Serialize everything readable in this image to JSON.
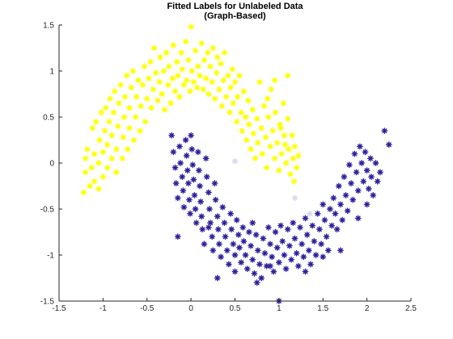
{
  "chart_data": {
    "type": "scatter",
    "title": [
      "Fitted Labels for Unlabeled Data",
      "(Graph-Based)"
    ],
    "xlabel": "",
    "ylabel": "",
    "xlim": [
      -1.5,
      2.5
    ],
    "ylim": [
      -1.5,
      1.5
    ],
    "xticks": [
      "-1.5",
      "-1",
      "-0.5",
      "0",
      "0.5",
      "1",
      "1.5",
      "2",
      "2.5"
    ],
    "yticks": [
      "-1.5",
      "-1",
      "-0.5",
      "0",
      "0.5",
      "1",
      "1.5"
    ],
    "grid": false,
    "legend": "none",
    "marker": "asterisk",
    "colors": {
      "label_1": "#ffff00",
      "label_2": "#2e1f9c",
      "intermediate": "#d9d9f0"
    },
    "series": [
      {
        "color": "#ffff00",
        "points": [
          [
            -1.22,
            -0.32
          ],
          [
            -1.2,
            -0.1
          ],
          [
            -1.2,
            0.05
          ],
          [
            -1.18,
            0.15
          ],
          [
            -1.15,
            -0.25
          ],
          [
            -1.13,
            -0.05
          ],
          [
            -1.12,
            0.38
          ],
          [
            -1.1,
            0.1
          ],
          [
            -1.1,
            -0.2
          ],
          [
            -1.08,
            0.45
          ],
          [
            -1.05,
            -0.28
          ],
          [
            -1.05,
            0.0
          ],
          [
            -1.04,
            0.25
          ],
          [
            -1.02,
            0.55
          ],
          [
            -1.0,
            -0.15
          ],
          [
            -1.0,
            0.12
          ],
          [
            -0.98,
            0.35
          ],
          [
            -0.97,
            0.6
          ],
          [
            -0.95,
            -0.05
          ],
          [
            -0.95,
            0.2
          ],
          [
            -0.93,
            0.45
          ],
          [
            -0.92,
            0.7
          ],
          [
            -0.9,
            0.05
          ],
          [
            -0.9,
            0.3
          ],
          [
            -0.88,
            0.55
          ],
          [
            -0.87,
            0.78
          ],
          [
            -0.85,
            -0.1
          ],
          [
            -0.85,
            0.15
          ],
          [
            -0.83,
            0.4
          ],
          [
            -0.82,
            0.65
          ],
          [
            -0.8,
            0.85
          ],
          [
            -0.78,
            0.05
          ],
          [
            -0.77,
            0.28
          ],
          [
            -0.76,
            0.5
          ],
          [
            -0.75,
            0.72
          ],
          [
            -0.73,
            0.95
          ],
          [
            -0.72,
            0.15
          ],
          [
            -0.7,
            0.38
          ],
          [
            -0.7,
            0.6
          ],
          [
            -0.68,
            0.82
          ],
          [
            -0.66,
            1.0
          ],
          [
            -0.65,
            0.25
          ],
          [
            -0.63,
            0.5
          ],
          [
            -0.62,
            0.72
          ],
          [
            -0.6,
            0.9
          ],
          [
            -0.58,
            0.35
          ],
          [
            -0.57,
            0.62
          ],
          [
            -0.55,
            0.85
          ],
          [
            -0.53,
            1.05
          ],
          [
            -0.52,
            0.45
          ],
          [
            -0.5,
            0.7
          ],
          [
            -0.48,
            0.92
          ],
          [
            -0.46,
            1.1
          ],
          [
            -0.45,
            0.6
          ],
          [
            -0.43,
            0.8
          ],
          [
            -0.42,
            1.25
          ],
          [
            -0.4,
            0.98
          ],
          [
            -0.38,
            0.68
          ],
          [
            -0.36,
            0.88
          ],
          [
            -0.35,
            1.15
          ],
          [
            -0.33,
            0.75
          ],
          [
            -0.31,
            1.0
          ],
          [
            -0.3,
            0.58
          ],
          [
            -0.28,
            1.2
          ],
          [
            -0.26,
            0.85
          ],
          [
            -0.25,
            1.05
          ],
          [
            -0.23,
            0.65
          ],
          [
            -0.21,
            0.92
          ],
          [
            -0.2,
            1.28
          ],
          [
            -0.18,
            0.78
          ],
          [
            -0.16,
            1.1
          ],
          [
            -0.15,
            0.95
          ],
          [
            -0.13,
            0.72
          ],
          [
            -0.11,
            1.2
          ],
          [
            -0.1,
            1.02
          ],
          [
            -0.08,
            0.85
          ],
          [
            -0.06,
            1.32
          ],
          [
            -0.05,
            0.9
          ],
          [
            -0.03,
            1.12
          ],
          [
            -0.01,
            0.78
          ],
          [
            0.0,
            1.48
          ],
          [
            0.01,
            1.0
          ],
          [
            0.03,
            0.88
          ],
          [
            0.05,
            1.22
          ],
          [
            0.07,
            0.82
          ],
          [
            0.08,
            1.05
          ],
          [
            0.1,
            0.95
          ],
          [
            0.12,
            1.3
          ],
          [
            0.14,
            0.8
          ],
          [
            0.15,
            1.12
          ],
          [
            0.17,
            0.92
          ],
          [
            0.19,
            1.2
          ],
          [
            0.2,
            0.75
          ],
          [
            0.22,
            1.05
          ],
          [
            0.24,
            0.88
          ],
          [
            0.25,
            1.25
          ],
          [
            0.27,
            0.7
          ],
          [
            0.29,
            0.98
          ],
          [
            0.3,
            1.15
          ],
          [
            0.32,
            0.8
          ],
          [
            0.34,
            1.08
          ],
          [
            0.35,
            0.62
          ],
          [
            0.37,
            0.9
          ],
          [
            0.38,
            1.2
          ],
          [
            0.4,
            0.72
          ],
          [
            0.42,
            0.95
          ],
          [
            0.44,
            0.55
          ],
          [
            0.45,
            0.82
          ],
          [
            0.47,
            1.02
          ],
          [
            0.48,
            0.65
          ],
          [
            0.5,
            0.88
          ],
          [
            0.52,
            0.45
          ],
          [
            0.53,
            0.72
          ],
          [
            0.55,
            0.95
          ],
          [
            0.57,
            0.55
          ],
          [
            0.58,
            0.35
          ],
          [
            0.6,
            0.78
          ],
          [
            0.62,
            0.5
          ],
          [
            0.63,
            0.25
          ],
          [
            0.65,
            0.68
          ],
          [
            0.66,
            0.42
          ],
          [
            0.68,
            0.15
          ],
          [
            0.7,
            0.58
          ],
          [
            0.71,
            0.32
          ],
          [
            0.73,
            0.05
          ],
          [
            0.75,
            0.48
          ],
          [
            0.76,
            0.22
          ],
          [
            0.78,
            0.88
          ],
          [
            0.8,
            0.38
          ],
          [
            0.81,
            0.1
          ],
          [
            0.83,
            0.62
          ],
          [
            0.85,
            0.28
          ],
          [
            0.86,
            -0.05
          ],
          [
            0.88,
            0.5
          ],
          [
            0.9,
            0.18
          ],
          [
            0.91,
            0.8
          ],
          [
            0.93,
            0.35
          ],
          [
            0.95,
            0.05
          ],
          [
            0.96,
            0.55
          ],
          [
            0.98,
            0.22
          ],
          [
            1.0,
            -0.08
          ],
          [
            1.01,
            0.42
          ],
          [
            1.03,
            0.1
          ],
          [
            1.05,
            0.65
          ],
          [
            1.06,
            0.3
          ],
          [
            1.08,
            0.0
          ],
          [
            1.1,
            0.48
          ],
          [
            1.11,
            0.15
          ],
          [
            1.13,
            -0.12
          ],
          [
            1.15,
            0.3
          ],
          [
            1.16,
            0.05
          ],
          [
            1.18,
            0.18
          ],
          [
            1.2,
            -0.05
          ],
          [
            1.22,
            0.08
          ],
          [
            1.1,
            0.95
          ],
          [
            0.95,
            0.9
          ],
          [
            1.02,
            0.38
          ],
          [
            0.87,
            0.7
          ],
          [
            1.07,
            0.2
          ],
          [
            1.17,
            -0.2
          ]
        ]
      },
      {
        "color": "#2e1f9c",
        "points": [
          [
            -0.22,
            0.3
          ],
          [
            -0.2,
            0.12
          ],
          [
            -0.18,
            -0.05
          ],
          [
            -0.17,
            -0.22
          ],
          [
            -0.15,
            -0.38
          ],
          [
            -0.13,
            0.18
          ],
          [
            -0.12,
            0.0
          ],
          [
            -0.1,
            -0.15
          ],
          [
            -0.09,
            -0.3
          ],
          [
            -0.08,
            -0.48
          ],
          [
            -0.06,
            0.25
          ],
          [
            -0.05,
            0.08
          ],
          [
            -0.04,
            -0.08
          ],
          [
            -0.03,
            -0.22
          ],
          [
            -0.02,
            -0.4
          ],
          [
            -0.01,
            -0.55
          ],
          [
            -0.15,
            -0.8
          ],
          [
            0.0,
            0.3
          ],
          [
            0.01,
            0.15
          ],
          [
            0.02,
            -0.02
          ],
          [
            0.03,
            -0.18
          ],
          [
            0.04,
            -0.35
          ],
          [
            0.05,
            -0.5
          ],
          [
            0.06,
            -0.65
          ],
          [
            0.08,
            0.12
          ],
          [
            0.09,
            -0.08
          ],
          [
            0.1,
            -0.25
          ],
          [
            0.11,
            -0.42
          ],
          [
            0.12,
            -0.58
          ],
          [
            0.13,
            -0.72
          ],
          [
            0.15,
            -0.88
          ],
          [
            0.17,
            0.05
          ],
          [
            0.18,
            -0.15
          ],
          [
            0.2,
            -0.32
          ],
          [
            0.21,
            -0.5
          ],
          [
            0.22,
            -0.65
          ],
          [
            0.24,
            -0.8
          ],
          [
            0.25,
            -0.95
          ],
          [
            0.27,
            -0.22
          ],
          [
            0.28,
            -0.4
          ],
          [
            0.3,
            -0.58
          ],
          [
            0.31,
            -0.72
          ],
          [
            0.32,
            -0.88
          ],
          [
            0.34,
            -1.02
          ],
          [
            0.3,
            -1.25
          ],
          [
            0.36,
            -0.48
          ],
          [
            0.38,
            -0.65
          ],
          [
            0.39,
            -0.8
          ],
          [
            0.41,
            -0.95
          ],
          [
            0.43,
            -1.1
          ],
          [
            0.45,
            -0.55
          ],
          [
            0.46,
            -0.72
          ],
          [
            0.48,
            -0.88
          ],
          [
            0.5,
            -1.0
          ],
          [
            0.52,
            -0.62
          ],
          [
            0.54,
            -0.78
          ],
          [
            0.55,
            -0.92
          ],
          [
            0.57,
            -1.08
          ],
          [
            0.59,
            -0.7
          ],
          [
            0.6,
            -0.85
          ],
          [
            0.62,
            -1.0
          ],
          [
            0.64,
            -1.15
          ],
          [
            0.66,
            -0.75
          ],
          [
            0.68,
            -0.9
          ],
          [
            0.7,
            -1.05
          ],
          [
            0.72,
            -1.2
          ],
          [
            0.74,
            -0.78
          ],
          [
            0.76,
            -0.95
          ],
          [
            0.78,
            -1.1
          ],
          [
            0.8,
            -1.25
          ],
          [
            0.82,
            -0.82
          ],
          [
            0.84,
            -0.98
          ],
          [
            0.86,
            -1.12
          ],
          [
            0.88,
            -0.7
          ],
          [
            0.9,
            -0.88
          ],
          [
            0.92,
            -1.02
          ],
          [
            0.94,
            -1.18
          ],
          [
            0.96,
            -0.75
          ],
          [
            0.98,
            -0.92
          ],
          [
            1.0,
            -1.08
          ],
          [
            1.02,
            -0.68
          ],
          [
            1.04,
            -0.85
          ],
          [
            1.06,
            -1.0
          ],
          [
            1.08,
            -1.15
          ],
          [
            1.1,
            -0.72
          ],
          [
            1.12,
            -0.9
          ],
          [
            1.14,
            -1.05
          ],
          [
            1.16,
            -0.65
          ],
          [
            1.18,
            -0.82
          ],
          [
            1.2,
            -0.98
          ],
          [
            1.22,
            -1.12
          ],
          [
            1.24,
            -0.7
          ],
          [
            1.26,
            -0.88
          ],
          [
            1.28,
            -1.02
          ],
          [
            1.3,
            -0.6
          ],
          [
            1.32,
            -0.78
          ],
          [
            1.34,
            -0.95
          ],
          [
            1.36,
            -1.1
          ],
          [
            1.38,
            -0.68
          ],
          [
            1.4,
            -0.85
          ],
          [
            1.42,
            -1.0
          ],
          [
            1.44,
            -0.55
          ],
          [
            1.46,
            -0.72
          ],
          [
            1.48,
            -0.88
          ],
          [
            1.5,
            -0.45
          ],
          [
            1.52,
            -0.62
          ],
          [
            1.54,
            -0.8
          ],
          [
            1.56,
            -0.95
          ],
          [
            1.58,
            -0.5
          ],
          [
            1.6,
            -0.68
          ],
          [
            1.62,
            -0.38
          ],
          [
            1.64,
            -0.55
          ],
          [
            1.66,
            -0.72
          ],
          [
            1.68,
            -0.25
          ],
          [
            1.7,
            -0.45
          ],
          [
            1.72,
            -0.62
          ],
          [
            1.74,
            -0.15
          ],
          [
            1.76,
            -0.35
          ],
          [
            1.78,
            -0.52
          ],
          [
            1.8,
            -0.02
          ],
          [
            1.82,
            -0.22
          ],
          [
            1.84,
            -0.4
          ],
          [
            1.86,
            0.1
          ],
          [
            1.88,
            -0.1
          ],
          [
            1.9,
            -0.3
          ],
          [
            1.92,
            0.18
          ],
          [
            1.94,
            0.0
          ],
          [
            1.96,
            -0.2
          ],
          [
            1.98,
            0.12
          ],
          [
            2.0,
            -0.08
          ],
          [
            2.02,
            -0.28
          ],
          [
            2.04,
            0.05
          ],
          [
            2.05,
            -0.15
          ],
          [
            2.07,
            -0.35
          ],
          [
            2.1,
            0.0
          ],
          [
            2.12,
            -0.2
          ],
          [
            2.15,
            -0.1
          ],
          [
            2.2,
            0.35
          ],
          [
            2.25,
            0.2
          ],
          [
            2.0,
            -0.45
          ],
          [
            1.7,
            -0.95
          ],
          [
            1.5,
            -1.02
          ],
          [
            1.9,
            -0.6
          ],
          [
            1.0,
            -1.5
          ],
          [
            0.7,
            -0.65
          ],
          [
            0.75,
            -1.3
          ],
          [
            0.5,
            -1.18
          ],
          [
            0.2,
            -0.7
          ],
          [
            0.9,
            -1.12
          ],
          [
            1.3,
            -1.18
          ]
        ]
      },
      {
        "color": "#d9d9f0",
        "points": [
          [
            0.5,
            0.02
          ],
          [
            1.18,
            -0.38
          ],
          [
            1.35,
            -0.55
          ]
        ]
      }
    ]
  }
}
